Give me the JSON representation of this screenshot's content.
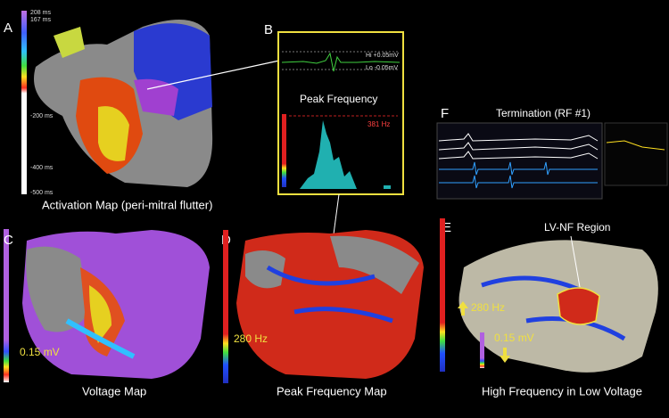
{
  "panel_a": {
    "letter": "A",
    "caption": "Activation Map (peri-mitral flutter)",
    "scale_labels": [
      "208 ms",
      "167 ms",
      "-200 ms",
      "-400 ms",
      "-500 ms"
    ]
  },
  "panel_b": {
    "letter": "B",
    "hi": "Hi +0.05mV",
    "lo": "Lo -0.05mV",
    "title": "Peak Frequency",
    "peak": "381 Hz"
  },
  "panel_c": {
    "letter": "C",
    "caption": "Voltage Map",
    "threshold": "0.15 mV"
  },
  "panel_d": {
    "letter": "D",
    "caption": "Peak Frequency Map",
    "threshold": "280 Hz"
  },
  "panel_e": {
    "letter": "E",
    "caption": "High Frequency in Low Voltage",
    "region": "LV-NF Region",
    "frequency": "280 Hz",
    "voltage": "0.15 mV"
  },
  "panel_f": {
    "letter": "F",
    "title": "Termination (RF #1)"
  }
}
